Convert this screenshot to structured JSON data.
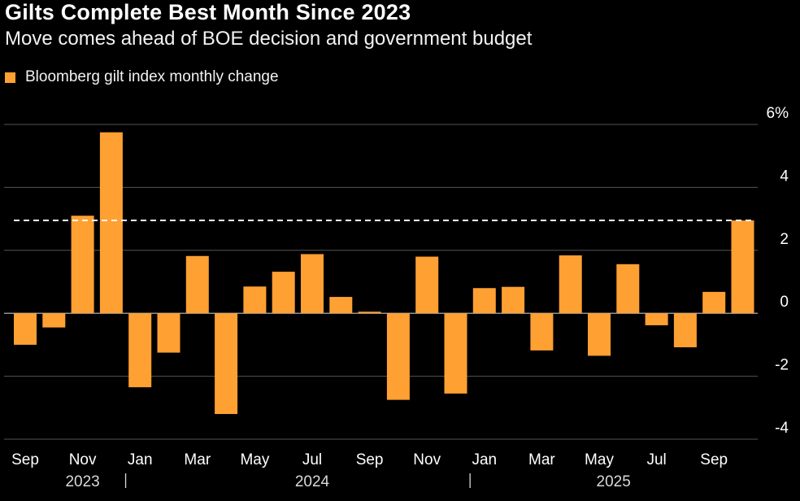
{
  "title": "Gilts Complete Best Month Since 2023",
  "subtitle": "Move comes ahead of BOE decision and government budget",
  "legend": {
    "label": "Bloomberg gilt index monthly change",
    "color": "#ffa033"
  },
  "colors": {
    "background": "#000000",
    "bar": "#ffa033",
    "grid": "#555555",
    "text": "#ffffff",
    "reference_line": "#ffffff"
  },
  "chart_data": {
    "type": "bar",
    "title": "Gilts Complete Best Month Since 2023",
    "subtitle": "Move comes ahead of BOE decision and government budget",
    "categories": [
      "2023-09",
      "2023-10",
      "2023-11",
      "2023-12",
      "2024-01",
      "2024-02",
      "2024-03",
      "2024-04",
      "2024-05",
      "2024-06",
      "2024-07",
      "2024-08",
      "2024-09",
      "2024-10",
      "2024-11",
      "2024-12",
      "2025-01",
      "2025-02",
      "2025-03",
      "2025-04",
      "2025-05",
      "2025-06",
      "2025-07",
      "2025-08",
      "2025-09",
      "2025-10"
    ],
    "series": [
      {
        "name": "Bloomberg gilt index monthly change",
        "values": [
          -1.0,
          -0.45,
          3.1,
          5.75,
          -2.35,
          -1.25,
          1.82,
          -3.2,
          0.85,
          1.32,
          1.88,
          0.52,
          0.05,
          -2.75,
          1.8,
          -2.55,
          0.8,
          0.84,
          -1.18,
          1.84,
          -1.35,
          1.56,
          -0.38,
          -1.08,
          0.68,
          2.95
        ]
      }
    ],
    "x_tick_labels": [
      {
        "index": 0,
        "label": "Sep"
      },
      {
        "index": 2,
        "label": "Nov"
      },
      {
        "index": 4,
        "label": "Jan"
      },
      {
        "index": 6,
        "label": "Mar"
      },
      {
        "index": 8,
        "label": "May"
      },
      {
        "index": 10,
        "label": "Jul"
      },
      {
        "index": 12,
        "label": "Sep"
      },
      {
        "index": 14,
        "label": "Nov"
      },
      {
        "index": 16,
        "label": "Jan"
      },
      {
        "index": 18,
        "label": "Mar"
      },
      {
        "index": 20,
        "label": "May"
      },
      {
        "index": 22,
        "label": "Jul"
      },
      {
        "index": 24,
        "label": "Sep"
      }
    ],
    "year_labels": [
      {
        "label": "2023",
        "center_index": 2
      },
      {
        "label": "2024",
        "center_index": 10
      },
      {
        "label": "2025",
        "center_index": 20.5
      }
    ],
    "year_separators": [
      3.5,
      15.5
    ],
    "y_ticks": [
      {
        "value": 6,
        "label": "6%"
      },
      {
        "value": 4,
        "label": "4"
      },
      {
        "value": 2,
        "label": "2"
      },
      {
        "value": 0,
        "label": "0"
      },
      {
        "value": -2,
        "label": "-2"
      },
      {
        "value": -4,
        "label": "-4"
      }
    ],
    "ylim": [
      -4,
      6
    ],
    "reference_line": {
      "value": 2.95,
      "style": "dashed"
    },
    "xlabel": "",
    "ylabel": "",
    "grid": true,
    "legend_position": "top-left"
  }
}
